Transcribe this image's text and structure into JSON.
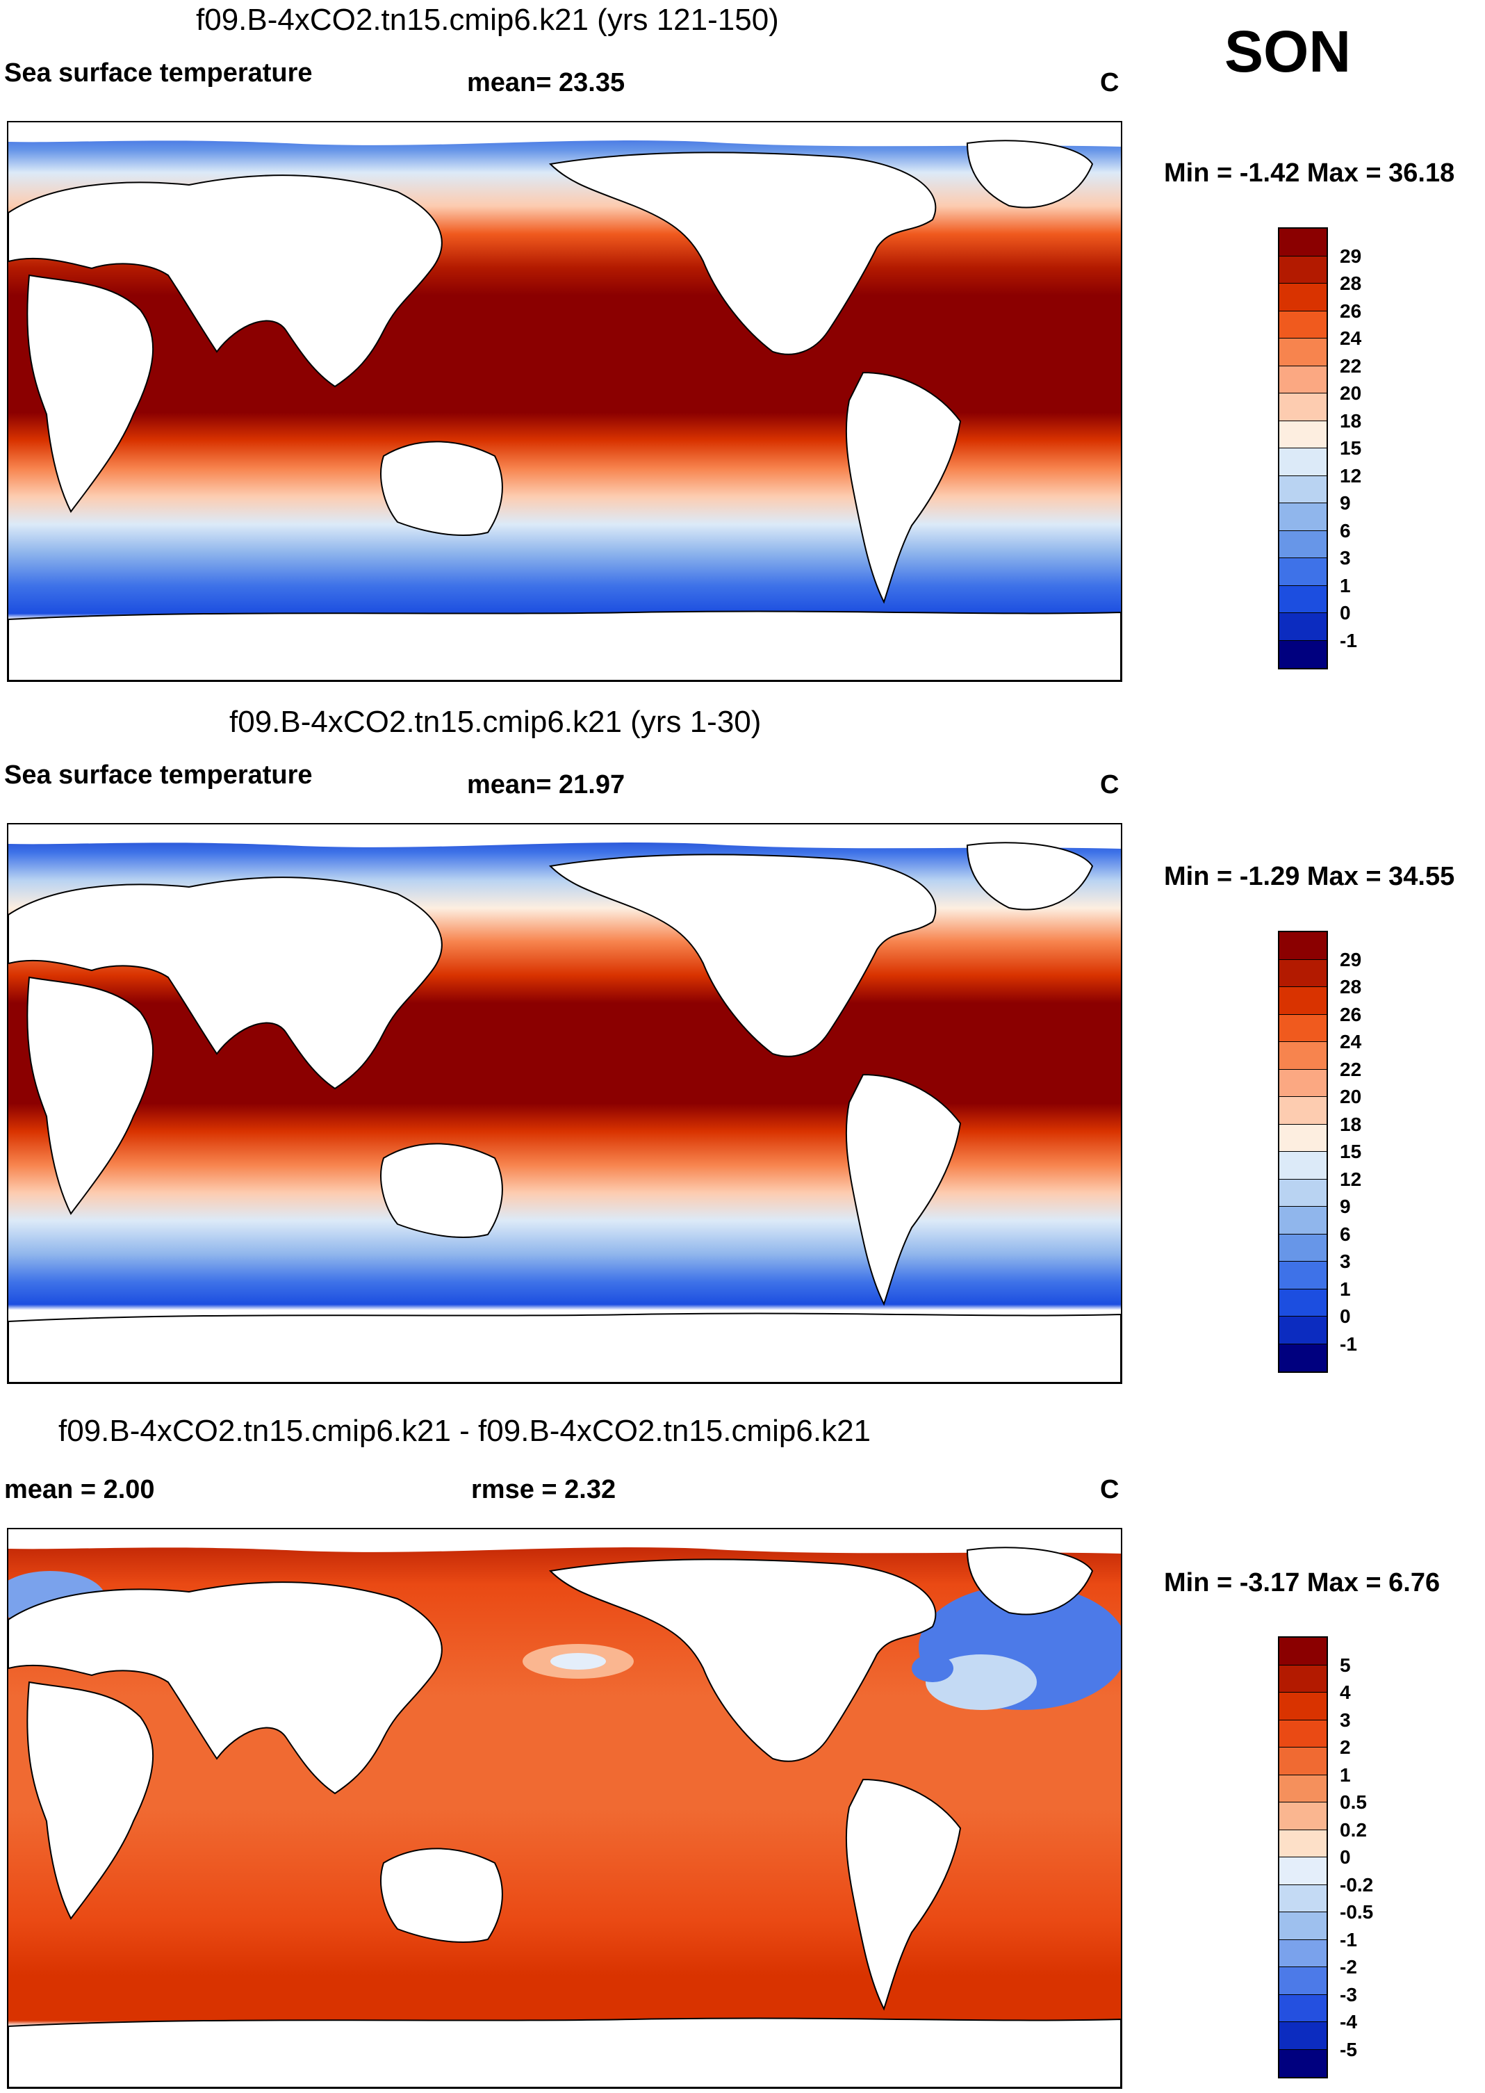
{
  "season": "SON",
  "units": "C",
  "panels": [
    {
      "title": "f09.B-4xCO2.tn15.cmip6.k21 (yrs 121-150)",
      "variable": "Sea surface temperature",
      "stat_text": "mean=  23.35",
      "units": "C",
      "minmax": "Min =  -1.42 Max =  36.18",
      "colorbar_labels": [
        "29",
        "28",
        "26",
        "24",
        "22",
        "20",
        "18",
        "15",
        "12",
        "9",
        "6",
        "3",
        "1",
        "0",
        "-1"
      ],
      "colorbar_colors": [
        "#8b0000",
        "#b31a00",
        "#d93300",
        "#f05a1e",
        "#f7844e",
        "#fba882",
        "#fdccb0",
        "#fdeee0",
        "#dceaf8",
        "#b9d3f2",
        "#90b6ec",
        "#6796e8",
        "#3e72e8",
        "#1c4ee0",
        "#0c2cc0",
        "#00007f"
      ]
    },
    {
      "title": "f09.B-4xCO2.tn15.cmip6.k21 (yrs 1-30)",
      "variable": "Sea surface temperature",
      "stat_text": "mean=  21.97",
      "units": "C",
      "minmax": "Min =  -1.29 Max =  34.55",
      "colorbar_labels": [
        "29",
        "28",
        "26",
        "24",
        "22",
        "20",
        "18",
        "15",
        "12",
        "9",
        "6",
        "3",
        "1",
        "0",
        "-1"
      ],
      "colorbar_colors": [
        "#8b0000",
        "#b31a00",
        "#d93300",
        "#f05a1e",
        "#f7844e",
        "#fba882",
        "#fdccb0",
        "#fdeee0",
        "#dceaf8",
        "#b9d3f2",
        "#90b6ec",
        "#6796e8",
        "#3e72e8",
        "#1c4ee0",
        "#0c2cc0",
        "#00007f"
      ]
    },
    {
      "title": "f09.B-4xCO2.tn15.cmip6.k21 - f09.B-4xCO2.tn15.cmip6.k21",
      "variable": "mean =    2.00",
      "stat_text": "rmse =    2.32",
      "units": "C",
      "minmax": "Min =  -3.17 Max =   6.76",
      "colorbar_labels": [
        "5",
        "4",
        "3",
        "2",
        "1",
        "0.5",
        "0.2",
        "0",
        "-0.2",
        "-0.5",
        "-1",
        "-2",
        "-3",
        "-4",
        "-5"
      ],
      "colorbar_colors": [
        "#8b0000",
        "#b31a00",
        "#d93300",
        "#ea4a14",
        "#f06a32",
        "#f5905c",
        "#fab690",
        "#fde0c8",
        "#e4eefa",
        "#c4daf4",
        "#9ec0ee",
        "#7aa2ec",
        "#4c7ae8",
        "#2450e0",
        "#0c2cc0",
        "#00007f"
      ]
    }
  ]
}
